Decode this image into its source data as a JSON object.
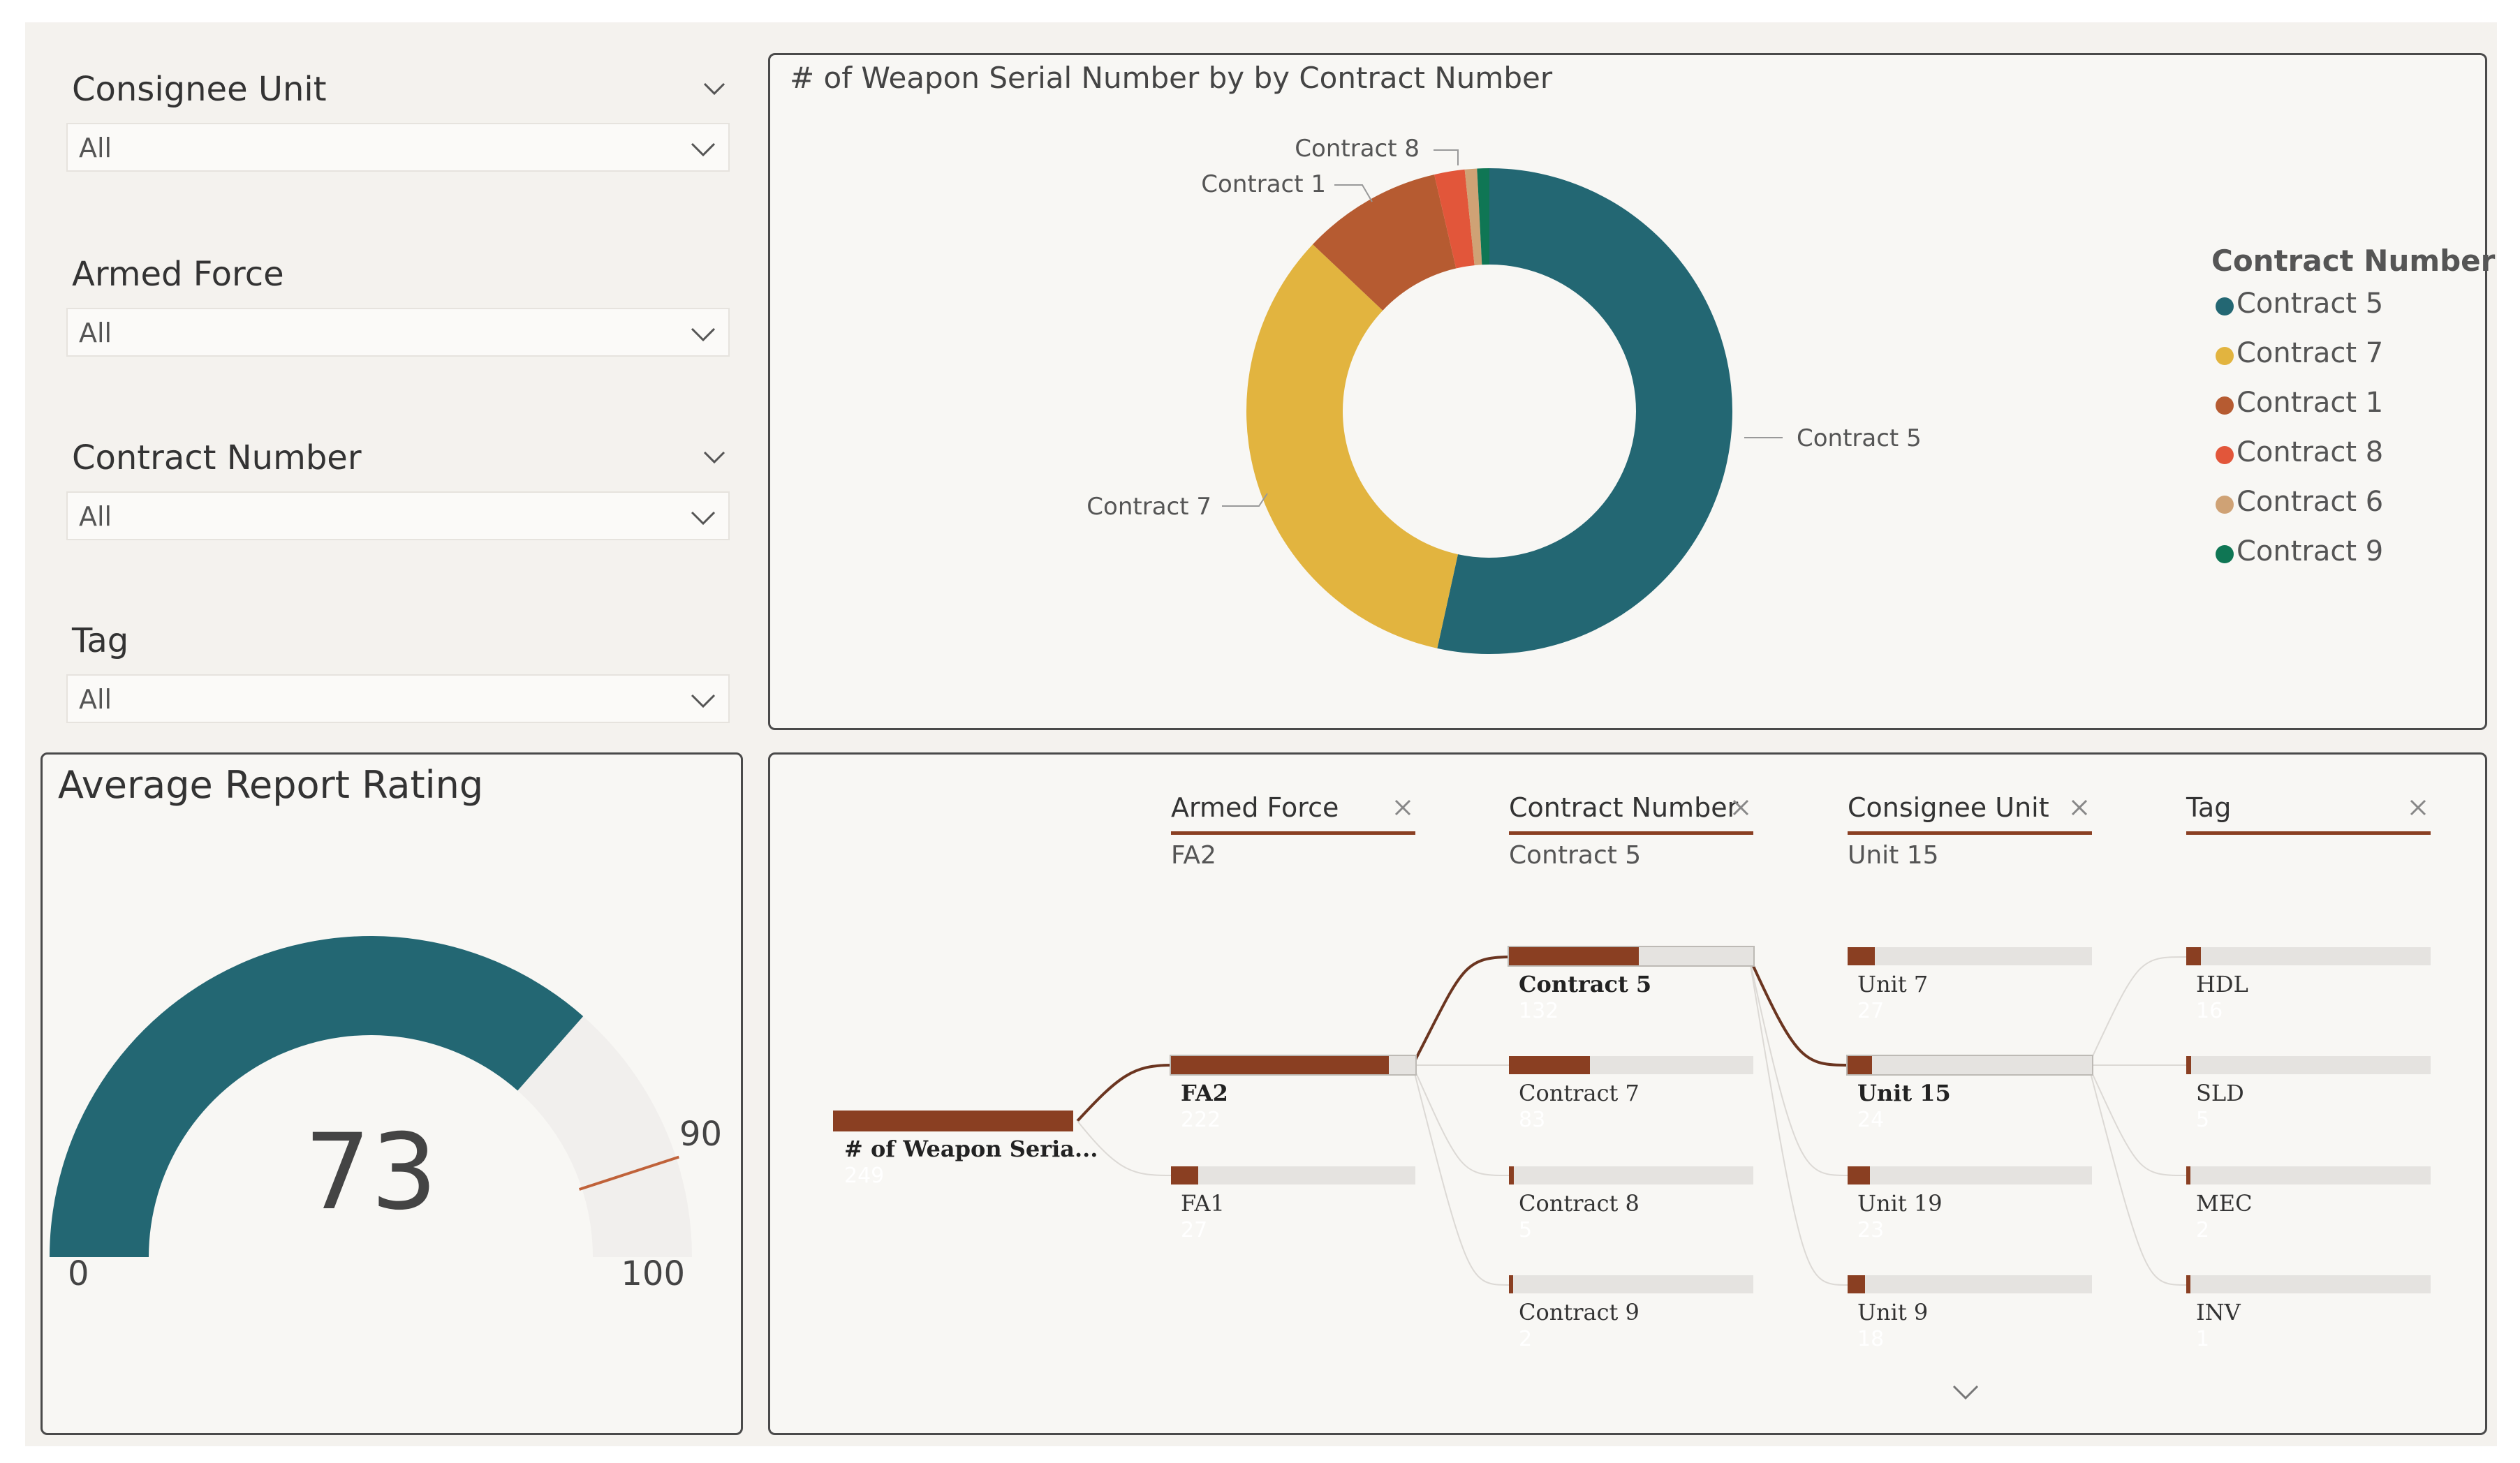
{
  "slicers": [
    {
      "title": "Consignee Unit",
      "value": "All"
    },
    {
      "title": "Armed Force",
      "value": "All"
    },
    {
      "title": "Contract Number",
      "value": "All"
    },
    {
      "title": "Tag",
      "value": "All"
    }
  ],
  "donut": {
    "title": "# of Weapon Serial Number by by Contract Number",
    "legend_title": "Contract Number",
    "slice_labels": {
      "contract_8": "Contract 8",
      "contract_1": "Contract 1",
      "contract_5": "Contract 5",
      "contract_7": "Contract 7"
    }
  },
  "chart_data": [
    {
      "type": "pie",
      "title": "# of Weapon Serial Number by by Contract Number",
      "legend_title": "Contract Number",
      "categories": [
        "Contract 5",
        "Contract 7",
        "Contract 1",
        "Contract 8",
        "Contract 6",
        "Contract 9"
      ],
      "values": [
        132,
        83,
        23,
        5,
        2,
        2
      ],
      "colors": [
        "#236773",
        "#e2b43f",
        "#b65b31",
        "#e2563a",
        "#cfa275",
        "#0f7654"
      ]
    },
    {
      "type": "gauge",
      "title": "Average Report Rating",
      "value": 73,
      "value_label": "73",
      "min": 0,
      "min_label": "0",
      "max": 100,
      "max_label": "100",
      "target": 90,
      "target_label": "90",
      "fill_color": "#236773",
      "target_color": "#c0623a"
    }
  ],
  "gauge": {
    "title": "Average Report Rating",
    "value": "73",
    "min": "0",
    "max": "100",
    "target": "90"
  },
  "tree": {
    "root": {
      "label": "# of Weapon Seria...",
      "value": "249"
    },
    "headers": [
      {
        "label": "Armed Force",
        "selected": "FA2"
      },
      {
        "label": "Contract Number",
        "selected": "Contract 5"
      },
      {
        "label": "Consignee Unit",
        "selected": "Unit 15"
      },
      {
        "label": "Tag",
        "selected": ""
      }
    ],
    "armed_force": [
      {
        "label": "FA2",
        "value": "222",
        "fraction": 0.89,
        "selected": true
      },
      {
        "label": "FA1",
        "value": "27",
        "fraction": 0.11
      }
    ],
    "contract": [
      {
        "label": "Contract 5",
        "value": "132",
        "fraction": 0.53,
        "selected": true
      },
      {
        "label": "Contract 7",
        "value": "83",
        "fraction": 0.33
      },
      {
        "label": "Contract 8",
        "value": "5",
        "fraction": 0.02
      },
      {
        "label": "Contract 9",
        "value": "2",
        "fraction": 0.01
      }
    ],
    "unit": [
      {
        "label": "Unit 7",
        "value": "27",
        "fraction": 0.11
      },
      {
        "label": "Unit 15",
        "value": "24",
        "fraction": 0.1,
        "selected": true
      },
      {
        "label": "Unit 19",
        "value": "23",
        "fraction": 0.09
      },
      {
        "label": "Unit 9",
        "value": "18",
        "fraction": 0.07
      }
    ],
    "tag": [
      {
        "label": "HDL",
        "value": "16",
        "fraction": 0.06
      },
      {
        "label": "SLD",
        "value": "5",
        "fraction": 0.02
      },
      {
        "label": "MEC",
        "value": "2",
        "fraction": 0.01
      },
      {
        "label": "INV",
        "value": "1",
        "fraction": 0.005
      }
    ]
  }
}
